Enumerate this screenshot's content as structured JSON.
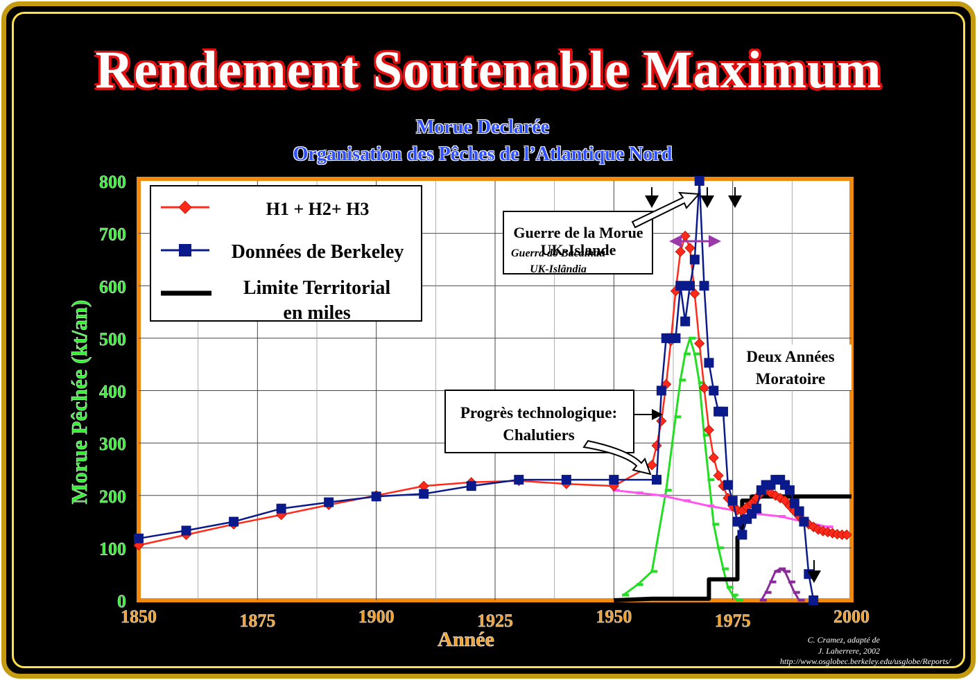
{
  "title": "Rendement Soutenable Maximum",
  "subtitle_line1": "Morue Declarée",
  "subtitle_line2": "Organisation des Pêches de l’Atlantique Nord",
  "credit": {
    "line1": "C. Cramez, adapté de",
    "line2": "J. Laherrere, 2002",
    "line3": "http://www.osglobec.berkeley.edu/usglobe/Reports/"
  },
  "colors": {
    "frame": "#c49a10",
    "background": "#000000",
    "plot_border": "#f08a10",
    "h123": "#ff2a1a",
    "berkeley": "#0a1a8a",
    "limit": "#000000",
    "green": "#22dd22",
    "magenta": "#ff55ee",
    "purple": "#8a2a9a",
    "axis_text_y": "#33ee33",
    "axis_text_x": "#f0a030"
  },
  "legend": {
    "h123": "H1 + H2+ H3",
    "berkeley": "Données de Berkeley",
    "limit_line1": "Limite Territorial",
    "limit_line2": "en miles"
  },
  "annotations": {
    "cod_war_line1": "Guerre de la Morue",
    "cod_war_line2": "UK-Islande",
    "cod_war_pt_line1": "Guerra do Bacalhau",
    "cod_war_pt_line2": "UK-Islândia",
    "moratorium_line1": "Deux Années",
    "moratorium_line2": "Moratoire",
    "tech_line1": "Progrès technologique:",
    "tech_line2": "Chalutiers"
  },
  "chart_data": {
    "type": "line",
    "xlabel": "Année",
    "ylabel": "Morue  Pêchée (kt/an)",
    "xlim": [
      1850,
      2000
    ],
    "ylim": [
      0,
      800
    ],
    "xticks": [
      "1850",
      "1875",
      "1900",
      "1925",
      "1950",
      "1975",
      "2000"
    ],
    "yticks": [
      "0",
      "100",
      "200",
      "300",
      "400",
      "500",
      "600",
      "700",
      "800"
    ],
    "grid": true,
    "legend_position": "top-left",
    "series": [
      {
        "name": "H1 + H2+ H3",
        "color": "#ff2a1a",
        "marker": "diamond",
        "x": [
          1850,
          1860,
          1870,
          1880,
          1890,
          1900,
          1910,
          1920,
          1930,
          1940,
          1950,
          1958,
          1959,
          1960,
          1961,
          1962,
          1963,
          1964,
          1965,
          1966,
          1967,
          1968,
          1969,
          1970,
          1971,
          1972,
          1973,
          1974,
          1975,
          1976,
          1977,
          1978,
          1979,
          1980,
          1981,
          1982,
          1983,
          1984,
          1985,
          1986,
          1987,
          1988,
          1989,
          1990,
          1991,
          1992,
          1993,
          1994,
          1995,
          1996,
          1997,
          1998,
          1999
        ],
        "y": [
          105,
          125,
          145,
          163,
          182,
          200,
          218,
          225,
          228,
          222,
          218,
          258,
          295,
          342,
          412,
          495,
          590,
          665,
          695,
          672,
          585,
          490,
          405,
          325,
          272,
          238,
          218,
          195,
          180,
          172,
          170,
          178,
          185,
          195,
          205,
          210,
          205,
          200,
          195,
          190,
          180,
          170,
          160,
          150,
          145,
          140,
          135,
          132,
          130,
          128,
          126,
          125,
          125
        ]
      },
      {
        "name": "Données de Berkeley",
        "color": "#0a1a8a",
        "marker": "square",
        "x": [
          1850,
          1860,
          1870,
          1880,
          1890,
          1900,
          1910,
          1920,
          1930,
          1940,
          1950,
          1959,
          1960,
          1961,
          1962,
          1963,
          1964,
          1965,
          1966,
          1967,
          1968,
          1969,
          1970,
          1971,
          1972,
          1973,
          1974,
          1975,
          1976,
          1977,
          1978,
          1979,
          1980,
          1981,
          1982,
          1983,
          1984,
          1985,
          1986,
          1987,
          1988,
          1989,
          1990,
          1991,
          1992
        ],
        "y": [
          118,
          133,
          150,
          175,
          187,
          198,
          203,
          218,
          230,
          230,
          230,
          230,
          400,
          500,
          500,
          500,
          600,
          532,
          600,
          650,
          800,
          600,
          453,
          400,
          360,
          360,
          220,
          190,
          150,
          125,
          155,
          165,
          175,
          210,
          220,
          220,
          230,
          230,
          220,
          210,
          185,
          170,
          150,
          50,
          0
        ]
      },
      {
        "name": "Limite Territorial en miles",
        "color": "#000000",
        "x": [
          1950,
          1958,
          1970,
          1970,
          1976,
          1976,
          1977,
          1977,
          1979,
          1979,
          2000
        ],
        "y": [
          0,
          3,
          3,
          40,
          40,
          120,
          120,
          190,
          190,
          198,
          198
        ]
      },
      {
        "color": "#22dd22",
        "x": [
          1952,
          1955,
          1958,
          1961,
          1963,
          1964,
          1965,
          1966,
          1967,
          1968,
          1969,
          1970,
          1971,
          1972,
          1973,
          1974,
          1975,
          1976
        ],
        "y": [
          10,
          30,
          55,
          210,
          350,
          420,
          470,
          500,
          470,
          415,
          315,
          230,
          145,
          100,
          60,
          25,
          10,
          0
        ]
      },
      {
        "color": "#ff55ee",
        "x": [
          1950,
          1955,
          1960,
          1965,
          1970,
          1975,
          1980,
          1985,
          1990,
          1995
        ],
        "y": [
          210,
          205,
          200,
          190,
          180,
          172,
          165,
          160,
          150,
          140
        ]
      },
      {
        "color": "#8a2a9a",
        "x": [
          1981,
          1982,
          1983,
          1984,
          1985,
          1986,
          1987,
          1988,
          1989
        ],
        "y": [
          0,
          15,
          35,
          55,
          60,
          55,
          35,
          15,
          0
        ]
      }
    ]
  }
}
